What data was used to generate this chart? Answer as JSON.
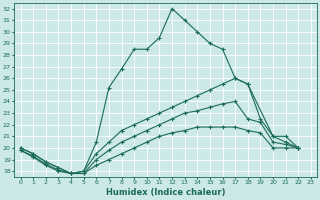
{
  "xlabel": "Humidex (Indice chaleur)",
  "bg_color": "#cce8e8",
  "line_color": "#1a6b5a",
  "grid_color": "#ffffff",
  "xlim": [
    -0.5,
    23.5
  ],
  "ylim": [
    17.5,
    32.5
  ],
  "xticks": [
    0,
    1,
    2,
    3,
    4,
    5,
    6,
    7,
    8,
    9,
    10,
    11,
    12,
    13,
    14,
    15,
    16,
    17,
    18,
    19,
    20,
    21,
    22,
    23
  ],
  "yticks": [
    18,
    19,
    20,
    21,
    22,
    23,
    24,
    25,
    26,
    27,
    28,
    29,
    30,
    31,
    32
  ],
  "series": [
    {
      "x": [
        0,
        1,
        2,
        3,
        4,
        5,
        6,
        7,
        8,
        9,
        10,
        11,
        12,
        13,
        14,
        15,
        16,
        17,
        18,
        20,
        21,
        22
      ],
      "y": [
        20.0,
        19.5,
        18.8,
        18.3,
        17.8,
        18.0,
        20.5,
        25.2,
        26.8,
        28.5,
        28.5,
        29.5,
        32.0,
        31.0,
        30.0,
        29.0,
        28.5,
        26.0,
        25.5,
        21.0,
        20.5,
        20.0
      ]
    },
    {
      "x": [
        0,
        1,
        2,
        3,
        4,
        5,
        6,
        7,
        8,
        9,
        10,
        11,
        12,
        13,
        14,
        15,
        16,
        17,
        18,
        19,
        20,
        21,
        22
      ],
      "y": [
        20.0,
        19.5,
        18.8,
        18.3,
        17.8,
        18.0,
        19.5,
        20.5,
        21.5,
        22.0,
        22.5,
        23.0,
        23.5,
        24.0,
        24.5,
        25.0,
        25.5,
        26.0,
        25.5,
        22.5,
        21.0,
        21.0,
        20.0
      ]
    },
    {
      "x": [
        0,
        1,
        2,
        3,
        4,
        5,
        6,
        7,
        8,
        9,
        10,
        11,
        12,
        13,
        14,
        15,
        16,
        17,
        18,
        19,
        20,
        21,
        22
      ],
      "y": [
        19.8,
        19.3,
        18.6,
        18.1,
        17.8,
        17.8,
        19.0,
        19.8,
        20.5,
        21.0,
        21.5,
        22.0,
        22.5,
        23.0,
        23.2,
        23.5,
        23.8,
        24.0,
        22.5,
        22.2,
        20.5,
        20.3,
        20.0
      ]
    },
    {
      "x": [
        0,
        1,
        2,
        3,
        4,
        5,
        6,
        7,
        8,
        9,
        10,
        11,
        12,
        13,
        14,
        15,
        16,
        17,
        18,
        19,
        20,
        21,
        22
      ],
      "y": [
        19.8,
        19.2,
        18.5,
        18.0,
        17.8,
        17.8,
        18.5,
        19.0,
        19.5,
        20.0,
        20.5,
        21.0,
        21.3,
        21.5,
        21.8,
        21.8,
        21.8,
        21.8,
        21.5,
        21.3,
        20.0,
        20.0,
        20.0
      ]
    }
  ]
}
